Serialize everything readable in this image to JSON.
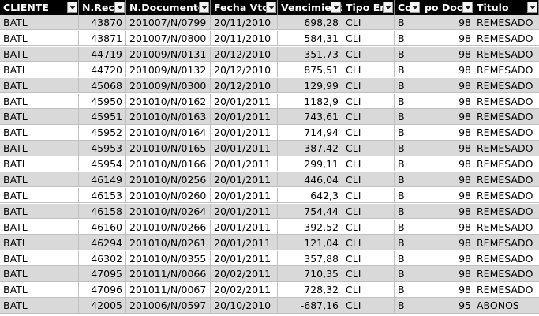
{
  "header": {
    "columns": [
      "CLIENTE",
      "N.Reci",
      "N.Documento",
      "Fecha Vto.",
      "Vencimient",
      "Tipo En",
      "Cod",
      "po Doct",
      "Titulo"
    ]
  },
  "rows": [
    {
      "cliente": "BATL",
      "nrecibo": "43870",
      "ndoc": "201007/N/0799",
      "fecha": "20/11/2010",
      "importe": "698,28",
      "tipo": "CLI",
      "cod": "B",
      "doc": "98",
      "titulo": "REMESADO"
    },
    {
      "cliente": "BATL",
      "nrecibo": "43871",
      "ndoc": "201007/N/0800",
      "fecha": "20/11/2010",
      "importe": "584,31",
      "tipo": "CLI",
      "cod": "B",
      "doc": "98",
      "titulo": "REMESADO"
    },
    {
      "cliente": "BATL",
      "nrecibo": "44719",
      "ndoc": "201009/N/0131",
      "fecha": "20/12/2010",
      "importe": "351,73",
      "tipo": "CLI",
      "cod": "B",
      "doc": "98",
      "titulo": "REMESADO"
    },
    {
      "cliente": "BATL",
      "nrecibo": "44720",
      "ndoc": "201009/N/0132",
      "fecha": "20/12/2010",
      "importe": "875,51",
      "tipo": "CLI",
      "cod": "B",
      "doc": "98",
      "titulo": "REMESADO"
    },
    {
      "cliente": "BATL",
      "nrecibo": "45068",
      "ndoc": "201009/N/0300",
      "fecha": "20/12/2010",
      "importe": "129,99",
      "tipo": "CLI",
      "cod": "B",
      "doc": "98",
      "titulo": "REMESADO"
    },
    {
      "cliente": "BATL",
      "nrecibo": "45950",
      "ndoc": "201010/N/0162",
      "fecha": "20/01/2011",
      "importe": "1182,9",
      "tipo": "CLI",
      "cod": "B",
      "doc": "98",
      "titulo": "REMESADO"
    },
    {
      "cliente": "BATL",
      "nrecibo": "45951",
      "ndoc": "201010/N/0163",
      "fecha": "20/01/2011",
      "importe": "743,61",
      "tipo": "CLI",
      "cod": "B",
      "doc": "98",
      "titulo": "REMESADO"
    },
    {
      "cliente": "BATL",
      "nrecibo": "45952",
      "ndoc": "201010/N/0164",
      "fecha": "20/01/2011",
      "importe": "714,94",
      "tipo": "CLI",
      "cod": "B",
      "doc": "98",
      "titulo": "REMESADO"
    },
    {
      "cliente": "BATL",
      "nrecibo": "45953",
      "ndoc": "201010/N/0165",
      "fecha": "20/01/2011",
      "importe": "387,42",
      "tipo": "CLI",
      "cod": "B",
      "doc": "98",
      "titulo": "REMESADO"
    },
    {
      "cliente": "BATL",
      "nrecibo": "45954",
      "ndoc": "201010/N/0166",
      "fecha": "20/01/2011",
      "importe": "299,11",
      "tipo": "CLI",
      "cod": "B",
      "doc": "98",
      "titulo": "REMESADO"
    },
    {
      "cliente": "BATL",
      "nrecibo": "46149",
      "ndoc": "201010/N/0256",
      "fecha": "20/01/2011",
      "importe": "446,04",
      "tipo": "CLI",
      "cod": "B",
      "doc": "98",
      "titulo": "REMESADO"
    },
    {
      "cliente": "BATL",
      "nrecibo": "46153",
      "ndoc": "201010/N/0260",
      "fecha": "20/01/2011",
      "importe": "642,3",
      "tipo": "CLI",
      "cod": "B",
      "doc": "98",
      "titulo": "REMESADO"
    },
    {
      "cliente": "BATL",
      "nrecibo": "46158",
      "ndoc": "201010/N/0264",
      "fecha": "20/01/2011",
      "importe": "754,44",
      "tipo": "CLI",
      "cod": "B",
      "doc": "98",
      "titulo": "REMESADO"
    },
    {
      "cliente": "BATL",
      "nrecibo": "46160",
      "ndoc": "201010/N/0266",
      "fecha": "20/01/2011",
      "importe": "392,52",
      "tipo": "CLI",
      "cod": "B",
      "doc": "98",
      "titulo": "REMESADO"
    },
    {
      "cliente": "BATL",
      "nrecibo": "46294",
      "ndoc": "201010/N/0261",
      "fecha": "20/01/2011",
      "importe": "121,04",
      "tipo": "CLI",
      "cod": "B",
      "doc": "98",
      "titulo": "REMESADO"
    },
    {
      "cliente": "BATL",
      "nrecibo": "46302",
      "ndoc": "201010/N/0355",
      "fecha": "20/01/2011",
      "importe": "357,88",
      "tipo": "CLI",
      "cod": "B",
      "doc": "98",
      "titulo": "REMESADO"
    },
    {
      "cliente": "BATL",
      "nrecibo": "47095",
      "ndoc": "201011/N/0066",
      "fecha": "20/02/2011",
      "importe": "710,35",
      "tipo": "CLI",
      "cod": "B",
      "doc": "98",
      "titulo": "REMESADO"
    },
    {
      "cliente": "BATL",
      "nrecibo": "47096",
      "ndoc": "201011/N/0067",
      "fecha": "20/02/2011",
      "importe": "728,32",
      "tipo": "CLI",
      "cod": "B",
      "doc": "98",
      "titulo": "REMESADO"
    },
    {
      "cliente": "BATL",
      "nrecibo": "42005",
      "ndoc": "201006/N/0597",
      "fecha": "20/10/2010",
      "importe": "-687,16",
      "tipo": "CLI",
      "cod": "B",
      "doc": "95",
      "titulo": "ABONOS"
    }
  ],
  "colors": {
    "header_bg": "#000000",
    "header_fg": "#ffffff",
    "band": "#d9d9d9",
    "grid": "#c0c0c0"
  },
  "icons": {
    "filter": "filter-dropdown-icon"
  }
}
